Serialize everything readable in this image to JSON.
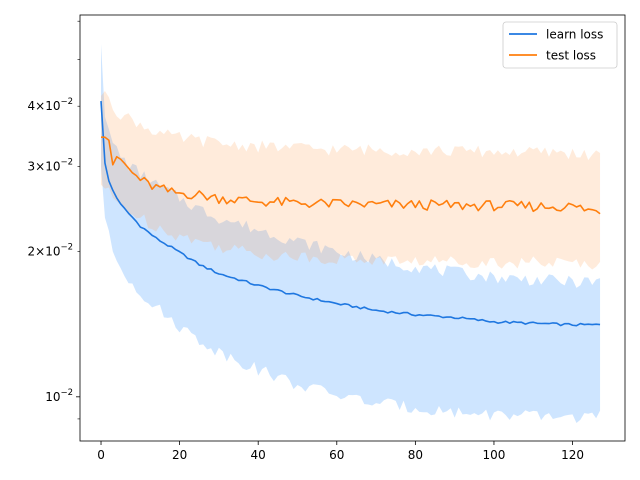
{
  "chart_data": {
    "type": "line",
    "yscale": "log",
    "xlim": [
      -5.35,
      133.35
    ],
    "ylim": [
      0.0081,
      0.0618
    ],
    "grid": false,
    "legend_position": "top-right",
    "x_ticks": [
      {
        "value": 0,
        "label": "0"
      },
      {
        "value": 20,
        "label": "20"
      },
      {
        "value": 40,
        "label": "40"
      },
      {
        "value": 60,
        "label": "60"
      },
      {
        "value": 80,
        "label": "80"
      },
      {
        "value": 100,
        "label": "100"
      },
      {
        "value": 120,
        "label": "120"
      }
    ],
    "y_major_ticks": [
      {
        "value": 0.01,
        "base": "10",
        "exponent": "−2"
      }
    ],
    "y_minor_ticks": [
      {
        "value": 0.02,
        "mantissa": "2",
        "base": "10",
        "exponent": "−2"
      },
      {
        "value": 0.03,
        "mantissa": "3",
        "base": "10",
        "exponent": "−2"
      },
      {
        "value": 0.04,
        "mantissa": "4",
        "base": "10",
        "exponent": "−2"
      },
      {
        "value": 0.009
      },
      {
        "value": 0.05
      },
      {
        "value": 0.06
      }
    ],
    "series": [
      {
        "name": "learn loss",
        "color": "#1f77e0",
        "band_color": "#1f8aff",
        "x_keyframes": [
          0,
          1,
          2,
          3,
          5,
          7,
          10,
          14,
          20,
          25,
          30,
          40,
          50,
          60,
          70,
          80,
          90,
          100,
          110,
          120,
          127
        ],
        "mean": [
          0.041,
          0.0305,
          0.028,
          0.0268,
          0.025,
          0.024,
          0.0226,
          0.0213,
          0.0199,
          0.0188,
          0.018,
          0.017,
          0.0162,
          0.0156,
          0.0151,
          0.0148,
          0.0146,
          0.0143,
          0.0142,
          0.0141,
          0.0141
        ],
        "upper": [
          0.0538,
          0.038,
          0.035,
          0.0335,
          0.0315,
          0.0302,
          0.029,
          0.0275,
          0.0258,
          0.0245,
          0.0235,
          0.0222,
          0.021,
          0.02,
          0.0192,
          0.0186,
          0.0181,
          0.0177,
          0.0175,
          0.0173,
          0.0173
        ],
        "lower": [
          0.03,
          0.0235,
          0.0215,
          0.02,
          0.0185,
          0.0176,
          0.0165,
          0.0153,
          0.014,
          0.0131,
          0.0124,
          0.0114,
          0.0106,
          0.0101,
          0.0097,
          0.0095,
          0.0093,
          0.0092,
          0.0091,
          0.0091,
          0.0091
        ]
      },
      {
        "name": "test loss",
        "color": "#ff7f0e",
        "band_color": "#ffa45a",
        "x_keyframes": [
          0,
          1,
          2,
          3,
          5,
          8,
          12,
          18,
          25,
          30,
          40,
          50,
          60,
          70,
          80,
          90,
          100,
          110,
          120,
          127
        ],
        "mean": [
          0.0345,
          0.0345,
          0.034,
          0.0305,
          0.031,
          0.029,
          0.0275,
          0.0265,
          0.0262,
          0.0258,
          0.0254,
          0.0252,
          0.0251,
          0.025,
          0.025,
          0.0249,
          0.0249,
          0.0248,
          0.0248,
          0.0241
        ],
        "upper": [
          0.042,
          0.043,
          0.0425,
          0.04,
          0.0385,
          0.0375,
          0.036,
          0.0345,
          0.034,
          0.0335,
          0.033,
          0.0328,
          0.0325,
          0.0325,
          0.0324,
          0.0323,
          0.0322,
          0.0321,
          0.032,
          0.0315
        ],
        "lower": [
          0.0275,
          0.027,
          0.0265,
          0.0255,
          0.025,
          0.024,
          0.023,
          0.0218,
          0.021,
          0.0205,
          0.0198,
          0.0195,
          0.0193,
          0.0192,
          0.0191,
          0.0191,
          0.019,
          0.019,
          0.0189,
          0.0189
        ]
      }
    ],
    "legend": {
      "entries": [
        "learn loss",
        "test loss"
      ]
    }
  }
}
